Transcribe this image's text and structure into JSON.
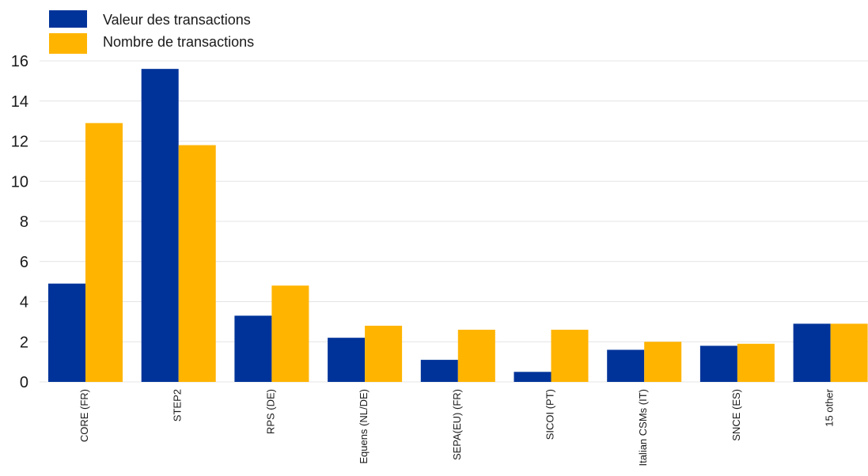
{
  "chart_data": {
    "type": "bar",
    "title": "",
    "xlabel": "",
    "ylabel": "",
    "ylim": [
      0,
      16
    ],
    "yticks": [
      0,
      2,
      4,
      6,
      8,
      10,
      12,
      14,
      16
    ],
    "grid": true,
    "legend_position": "top-left",
    "categories": [
      "CORE (FR)",
      "STEP2",
      "RPS (DE)",
      "Equens (NL/DE)",
      "SEPA(EU) (FR)",
      "SICOI (PT)",
      "Italian CSMs (IT)",
      "SNCE (ES)",
      "15 other"
    ],
    "series": [
      {
        "name": "Valeur des transactions",
        "color": "#003399",
        "values": [
          4.9,
          15.6,
          3.3,
          2.2,
          1.1,
          0.5,
          1.6,
          1.8,
          2.9
        ]
      },
      {
        "name": "Nombre de transactions",
        "color": "#ffb400",
        "values": [
          12.9,
          11.8,
          4.8,
          2.8,
          2.6,
          2.6,
          2.0,
          1.9,
          2.9
        ]
      }
    ]
  }
}
